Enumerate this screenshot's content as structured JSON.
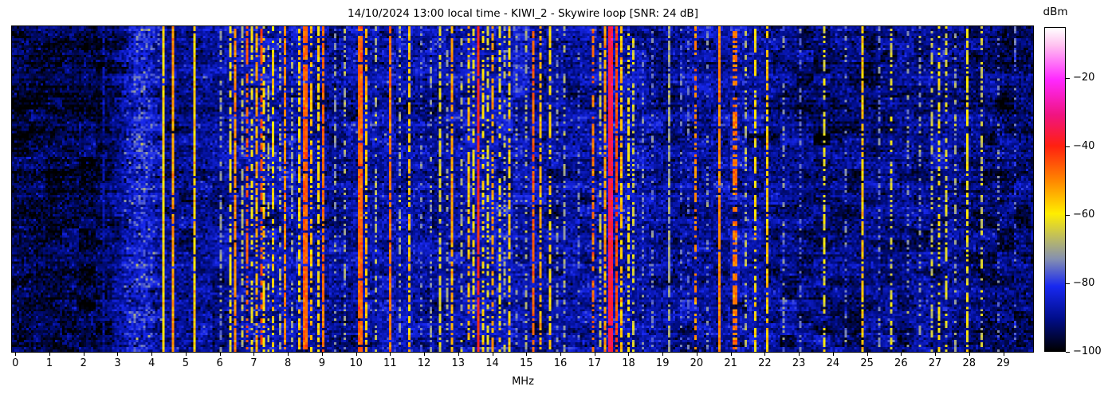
{
  "chart": {
    "title": "14/10/2024 13:00 local time - KIWI_2 - Skywire loop [SNR: 24 dB]",
    "xlabel": "MHz",
    "x_ticks": [
      0,
      1,
      2,
      3,
      4,
      5,
      6,
      7,
      8,
      9,
      10,
      11,
      12,
      13,
      14,
      15,
      16,
      17,
      18,
      19,
      20,
      21,
      22,
      23,
      24,
      25,
      26,
      27,
      28,
      29
    ],
    "colorbar": {
      "label": "dBm",
      "ticks": [
        {
          "value": -20,
          "label": "−20"
        },
        {
          "value": -40,
          "label": "−40"
        },
        {
          "value": -60,
          "label": "−60"
        },
        {
          "value": -80,
          "label": "−80"
        },
        {
          "value": -100,
          "label": "−100"
        }
      ]
    }
  },
  "chart_data": {
    "type": "heatmap",
    "title": "14/10/2024 13:00 local time - KIWI_2 - Skywire loop [SNR: 24 dB]",
    "xlabel": "MHz",
    "x_range": [
      0,
      30
    ],
    "y_axis": "time (waterfall, no ticks shown)",
    "value_unit": "dBm",
    "value_range": [
      -100,
      -5
    ],
    "colorbar_ticks": [
      -20,
      -40,
      -60,
      -80,
      -100
    ],
    "legend_position": "right-colorbar",
    "grid": false,
    "colormap_stops": [
      [
        0.0,
        "#ffffff"
      ],
      [
        0.055,
        "#ffc0f0"
      ],
      [
        0.16,
        "#ff28ff"
      ],
      [
        0.27,
        "#f01480"
      ],
      [
        0.365,
        "#ff2010"
      ],
      [
        0.47,
        "#ff8400"
      ],
      [
        0.575,
        "#ffee00"
      ],
      [
        0.655,
        "#b8b868"
      ],
      [
        0.715,
        "#8590b0"
      ],
      [
        0.8,
        "#1828f0"
      ],
      [
        0.9,
        "#000d8a"
      ],
      [
        1.0,
        "#000000"
      ]
    ],
    "noise_floor_profile": [
      [
        -0.1,
        -96
      ],
      [
        2.6,
        -95
      ],
      [
        3.1,
        -90
      ],
      [
        3.5,
        -84
      ],
      [
        3.75,
        -82
      ],
      [
        4.0,
        -84
      ],
      [
        4.4,
        -90
      ],
      [
        5.2,
        -91
      ],
      [
        6.3,
        -88
      ],
      [
        7.5,
        -87
      ],
      [
        8.6,
        -88
      ],
      [
        9.5,
        -90
      ],
      [
        10.5,
        -88
      ],
      [
        11.5,
        -87
      ],
      [
        12.3,
        -89
      ],
      [
        13.5,
        -87
      ],
      [
        14.3,
        -86
      ],
      [
        15.3,
        -89
      ],
      [
        16.3,
        -89
      ],
      [
        17.5,
        -87
      ],
      [
        18.3,
        -88
      ],
      [
        19.3,
        -90
      ],
      [
        20.5,
        -89
      ],
      [
        21.5,
        -88
      ],
      [
        22.3,
        -90
      ],
      [
        23.2,
        -92
      ],
      [
        24.5,
        -92
      ],
      [
        25.5,
        -91
      ],
      [
        26.8,
        -90
      ],
      [
        27.3,
        -89
      ],
      [
        28.2,
        -92
      ],
      [
        29.0,
        -93
      ],
      [
        29.9,
        -92
      ]
    ],
    "signals": [
      {
        "freq_mhz": 2.62,
        "level_dbm": -88,
        "width": 1,
        "duty": 0.8
      },
      {
        "freq_mhz": 4.32,
        "level_dbm": -58,
        "width": 1,
        "duty": 0.97
      },
      {
        "freq_mhz": 4.66,
        "level_dbm": -52,
        "width": 1,
        "duty": 0.95
      },
      {
        "freq_mhz": 5.25,
        "level_dbm": -57,
        "width": 1,
        "duty": 0.95
      },
      {
        "freq_mhz": 6.06,
        "level_dbm": -72,
        "width": 1,
        "duty": 0.5
      },
      {
        "freq_mhz": 6.28,
        "level_dbm": -61,
        "width": 1,
        "duty": 0.7
      },
      {
        "freq_mhz": 6.48,
        "level_dbm": -50,
        "width": 1,
        "duty": 0.85
      },
      {
        "freq_mhz": 6.63,
        "level_dbm": -68,
        "width": 1,
        "duty": 0.5
      },
      {
        "freq_mhz": 6.8,
        "level_dbm": -46,
        "width": 1,
        "duty": 0.55
      },
      {
        "freq_mhz": 6.95,
        "level_dbm": -62,
        "width": 1,
        "duty": 0.5
      },
      {
        "freq_mhz": 7.08,
        "level_dbm": -53,
        "width": 1,
        "duty": 0.65
      },
      {
        "freq_mhz": 7.2,
        "level_dbm": -44,
        "width": 1,
        "duty": 0.55
      },
      {
        "freq_mhz": 7.32,
        "level_dbm": -58,
        "width": 1,
        "duty": 0.55
      },
      {
        "freq_mhz": 7.46,
        "level_dbm": -66,
        "width": 1,
        "duty": 0.45
      },
      {
        "freq_mhz": 7.6,
        "level_dbm": -57,
        "width": 1,
        "duty": 0.65
      },
      {
        "freq_mhz": 7.78,
        "level_dbm": -68,
        "width": 1,
        "duty": 0.4
      },
      {
        "freq_mhz": 7.9,
        "level_dbm": -50,
        "width": 1,
        "duty": 0.8
      },
      {
        "freq_mhz": 8.12,
        "level_dbm": -70,
        "width": 1,
        "duty": 0.4
      },
      {
        "freq_mhz": 8.35,
        "level_dbm": -58,
        "width": 1,
        "duty": 0.65
      },
      {
        "freq_mhz": 8.5,
        "level_dbm": -46,
        "width": 2,
        "duty": 0.9
      },
      {
        "freq_mhz": 8.68,
        "level_dbm": -55,
        "width": 1,
        "duty": 0.55
      },
      {
        "freq_mhz": 8.9,
        "level_dbm": -58,
        "width": 1,
        "duty": 0.7
      },
      {
        "freq_mhz": 9.02,
        "level_dbm": -48,
        "width": 1,
        "duty": 0.85
      },
      {
        "freq_mhz": 9.4,
        "level_dbm": -72,
        "width": 1,
        "duty": 0.4
      },
      {
        "freq_mhz": 9.7,
        "level_dbm": -70,
        "width": 1,
        "duty": 0.45
      },
      {
        "freq_mhz": 10.14,
        "level_dbm": -46,
        "width": 2,
        "duty": 0.92
      },
      {
        "freq_mhz": 10.28,
        "level_dbm": -55,
        "width": 1,
        "duty": 0.7
      },
      {
        "freq_mhz": 10.6,
        "level_dbm": -68,
        "width": 1,
        "duty": 0.4
      },
      {
        "freq_mhz": 11.0,
        "level_dbm": -48,
        "width": 1,
        "duty": 0.88
      },
      {
        "freq_mhz": 11.27,
        "level_dbm": -70,
        "width": 1,
        "duty": 0.4
      },
      {
        "freq_mhz": 11.58,
        "level_dbm": -56,
        "width": 1,
        "duty": 0.75
      },
      {
        "freq_mhz": 11.9,
        "level_dbm": -74,
        "width": 1,
        "duty": 0.3
      },
      {
        "freq_mhz": 12.2,
        "level_dbm": -72,
        "width": 1,
        "duty": 0.35
      },
      {
        "freq_mhz": 12.5,
        "level_dbm": -63,
        "width": 1,
        "duty": 0.75
      },
      {
        "freq_mhz": 12.7,
        "level_dbm": -70,
        "width": 1,
        "duty": 0.4
      },
      {
        "freq_mhz": 12.85,
        "level_dbm": -53,
        "width": 1,
        "duty": 0.8
      },
      {
        "freq_mhz": 13.1,
        "level_dbm": -68,
        "width": 1,
        "duty": 0.4
      },
      {
        "freq_mhz": 13.3,
        "level_dbm": -55,
        "width": 1,
        "duty": 0.65
      },
      {
        "freq_mhz": 13.45,
        "level_dbm": -61,
        "width": 1,
        "duty": 0.55
      },
      {
        "freq_mhz": 13.58,
        "level_dbm": -40,
        "width": 1,
        "duty": 0.95
      },
      {
        "freq_mhz": 13.74,
        "level_dbm": -58,
        "width": 1,
        "duty": 0.5
      },
      {
        "freq_mhz": 13.9,
        "level_dbm": -63,
        "width": 1,
        "duty": 0.5
      },
      {
        "freq_mhz": 14.05,
        "level_dbm": -52,
        "width": 1,
        "duty": 0.65
      },
      {
        "freq_mhz": 14.22,
        "level_dbm": -60,
        "width": 1,
        "duty": 0.55
      },
      {
        "freq_mhz": 14.36,
        "level_dbm": -68,
        "width": 1,
        "duty": 0.45
      },
      {
        "freq_mhz": 14.5,
        "level_dbm": -57,
        "width": 1,
        "duty": 0.55
      },
      {
        "freq_mhz": 14.75,
        "level_dbm": -72,
        "width": 1,
        "duty": 0.3
      },
      {
        "freq_mhz": 15.0,
        "level_dbm": -69,
        "width": 1,
        "duty": 0.4
      },
      {
        "freq_mhz": 15.2,
        "level_dbm": -46,
        "width": 1,
        "duty": 0.75
      },
      {
        "freq_mhz": 15.45,
        "level_dbm": -54,
        "width": 1,
        "duty": 0.65
      },
      {
        "freq_mhz": 15.68,
        "level_dbm": -58,
        "width": 1,
        "duty": 0.6
      },
      {
        "freq_mhz": 15.95,
        "level_dbm": -73,
        "width": 1,
        "duty": 0.3
      },
      {
        "freq_mhz": 16.15,
        "level_dbm": -70,
        "width": 1,
        "duty": 0.4
      },
      {
        "freq_mhz": 16.55,
        "level_dbm": -74,
        "width": 1,
        "duty": 0.3
      },
      {
        "freq_mhz": 16.95,
        "level_dbm": -48,
        "width": 1,
        "duty": 0.55
      },
      {
        "freq_mhz": 17.15,
        "level_dbm": -66,
        "width": 1,
        "duty": 0.5
      },
      {
        "freq_mhz": 17.3,
        "level_dbm": -52,
        "width": 1,
        "duty": 0.75
      },
      {
        "freq_mhz": 17.5,
        "level_dbm": -35,
        "width": 2,
        "duty": 0.98
      },
      {
        "freq_mhz": 17.64,
        "level_dbm": -44,
        "width": 1,
        "duty": 0.85
      },
      {
        "freq_mhz": 17.82,
        "level_dbm": -55,
        "width": 1,
        "duty": 0.65
      },
      {
        "freq_mhz": 18.02,
        "level_dbm": -60,
        "width": 1,
        "duty": 0.5
      },
      {
        "freq_mhz": 18.15,
        "level_dbm": -64,
        "width": 1,
        "duty": 0.45
      },
      {
        "freq_mhz": 18.45,
        "level_dbm": -74,
        "width": 1,
        "duty": 0.3
      },
      {
        "freq_mhz": 18.7,
        "level_dbm": -74,
        "width": 1,
        "duty": 0.3
      },
      {
        "freq_mhz": 19.2,
        "level_dbm": -70,
        "width": 1,
        "duty": 0.85
      },
      {
        "freq_mhz": 19.55,
        "level_dbm": -75,
        "width": 1,
        "duty": 0.3
      },
      {
        "freq_mhz": 19.8,
        "level_dbm": -76,
        "width": 1,
        "duty": 0.3
      },
      {
        "freq_mhz": 20.0,
        "level_dbm": -50,
        "width": 1,
        "duty": 0.55
      },
      {
        "freq_mhz": 20.35,
        "level_dbm": -73,
        "width": 1,
        "duty": 0.3
      },
      {
        "freq_mhz": 20.65,
        "level_dbm": -50,
        "width": 1,
        "duty": 0.95
      },
      {
        "freq_mhz": 21.12,
        "level_dbm": -48,
        "width": 2,
        "duty": 0.6
      },
      {
        "freq_mhz": 21.45,
        "level_dbm": -68,
        "width": 1,
        "duty": 0.4
      },
      {
        "freq_mhz": 21.72,
        "level_dbm": -58,
        "width": 1,
        "duty": 0.5
      },
      {
        "freq_mhz": 22.1,
        "level_dbm": -56,
        "width": 1,
        "duty": 0.75
      },
      {
        "freq_mhz": 22.55,
        "level_dbm": -73,
        "width": 1,
        "duty": 0.3
      },
      {
        "freq_mhz": 23.1,
        "level_dbm": -75,
        "width": 1,
        "duty": 0.4
      },
      {
        "freq_mhz": 23.8,
        "level_dbm": -62,
        "width": 1,
        "duty": 0.5
      },
      {
        "freq_mhz": 24.4,
        "level_dbm": -74,
        "width": 1,
        "duty": 0.3
      },
      {
        "freq_mhz": 24.9,
        "level_dbm": -56,
        "width": 1,
        "duty": 0.8
      },
      {
        "freq_mhz": 25.35,
        "level_dbm": -74,
        "width": 1,
        "duty": 0.3
      },
      {
        "freq_mhz": 25.72,
        "level_dbm": -64,
        "width": 1,
        "duty": 0.5
      },
      {
        "freq_mhz": 26.25,
        "level_dbm": -73,
        "width": 1,
        "duty": 0.3
      },
      {
        "freq_mhz": 26.6,
        "level_dbm": -71,
        "width": 1,
        "duty": 0.4
      },
      {
        "freq_mhz": 26.92,
        "level_dbm": -66,
        "width": 1,
        "duty": 0.5
      },
      {
        "freq_mhz": 27.1,
        "level_dbm": -60,
        "width": 1,
        "duty": 0.55
      },
      {
        "freq_mhz": 27.32,
        "level_dbm": -63,
        "width": 1,
        "duty": 0.5
      },
      {
        "freq_mhz": 27.6,
        "level_dbm": -70,
        "width": 1,
        "duty": 0.4
      },
      {
        "freq_mhz": 27.97,
        "level_dbm": -61,
        "width": 1,
        "duty": 0.7
      },
      {
        "freq_mhz": 28.4,
        "level_dbm": -66,
        "width": 1,
        "duty": 0.45
      },
      {
        "freq_mhz": 28.85,
        "level_dbm": -74,
        "width": 1,
        "duty": 0.3
      },
      {
        "freq_mhz": 29.35,
        "level_dbm": -77,
        "width": 1,
        "duty": 0.3
      }
    ],
    "render": {
      "seed": 1337,
      "cols": 428,
      "rows": 137,
      "f_min": -0.1,
      "f_max": 29.9,
      "noise_sigma": 3.5,
      "band_sigma": 5.0,
      "band_range": [
        3.2,
        4.35
      ]
    }
  }
}
